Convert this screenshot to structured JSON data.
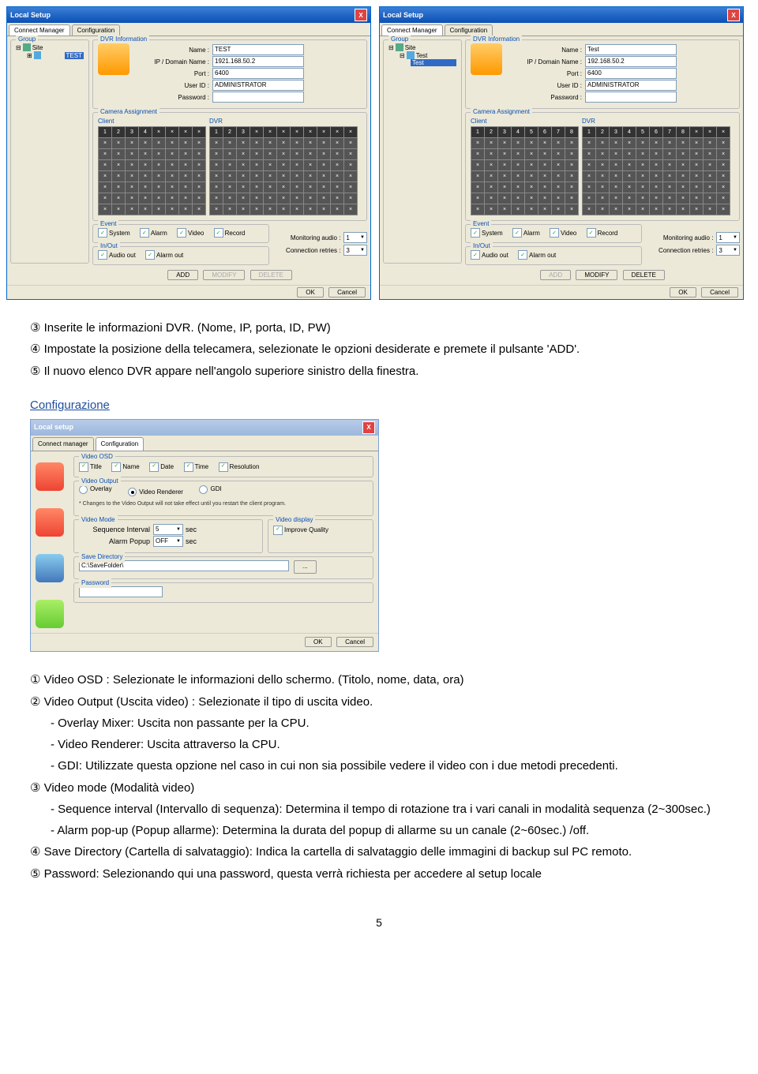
{
  "win_title": "Local Setup",
  "tabs": {
    "cm": "Connect Manager",
    "cfg": "Configuration"
  },
  "group_label": "Group",
  "tree": {
    "site": "Site",
    "test1": "TEST",
    "test2": "Test",
    "test2child": "Test"
  },
  "dvr_info": {
    "label": "DVR Information",
    "name": "Name :",
    "ip": "IP / Domain Name :",
    "port": "Port :",
    "uid": "User ID :",
    "pw": "Password :",
    "v1": {
      "name": "TEST",
      "ip": "1921.168.50.2",
      "port": "6400",
      "uid": "ADMINISTRATOR",
      "pw": ""
    },
    "v2": {
      "name": "Test",
      "ip": "192.168.50.2",
      "port": "6400",
      "uid": "ADMINISTRATOR",
      "pw": ""
    }
  },
  "cam": {
    "label": "Camera Assignment",
    "client": "Client",
    "dvr": "DVR"
  },
  "event": {
    "label": "Event",
    "system": "System",
    "alarm": "Alarm",
    "video": "Video",
    "record": "Record"
  },
  "inout": {
    "label": "In/Out",
    "audio": "Audio out",
    "alarmout": "Alarm out"
  },
  "mon": {
    "audio": "Monitoring audio :",
    "audio_v": "1",
    "retry": "Connection retries :",
    "retry_v": "3"
  },
  "btns": {
    "add": "ADD",
    "modify": "MODIFY",
    "delete": "DELETE",
    "ok": "OK",
    "cancel": "Cancel"
  },
  "doc": {
    "l1": "③ Inserite le informazioni DVR. (Nome, IP, porta, ID, PW)",
    "l2": "④ Impostate la posizione della telecamera, selezionate le opzioni desiderate e premete il pulsante 'ADD'.",
    "l3": "⑤ Il nuovo elenco DVR appare nell'angolo superiore sinistro della finestra.",
    "h": "Configurazione",
    "c1": "① Video OSD : Selezionate le informazioni dello schermo. (Titolo, nome, data, ora)",
    "c2": "② Video Output (Uscita video) : Selezionate il tipo di uscita video.",
    "c2a": "- Overlay Mixer: Uscita non passante per la CPU.",
    "c2b": "- Video Renderer: Uscita attraverso la CPU.",
    "c2c": "- GDI: Utilizzate questa opzione nel caso in cui non sia possibile vedere il video con i due metodi precedenti.",
    "c3": "③ Video mode (Modalità video)",
    "c3a": "- Sequence interval (Intervallo di sequenza): Determina il tempo di rotazione tra i vari canali in modalità sequenza (2~300sec.)",
    "c3b": "- Alarm pop-up (Popup allarme): Determina la durata del popup di allarme su un canale (2~60sec.) /off.",
    "c4": "④ Save Directory (Cartella di salvataggio): Indica la cartella di salvataggio delle immagini di backup sul PC remoto.",
    "c5": "⑤ Password: Selezionando qui una password, questa verrà richiesta per accedere al setup locale",
    "pn": "5"
  },
  "cfg": {
    "title": "Local setup",
    "tabs": {
      "cm": "Connect manager",
      "cfg": "Configuration"
    },
    "osd": {
      "label": "Video OSD",
      "title": "Title",
      "name": "Name",
      "date": "Date",
      "time": "Time",
      "res": "Resolution"
    },
    "out": {
      "label": "Video Output",
      "ov": "Overlay",
      "vr": "Video Renderer",
      "gdi": "GDI",
      "note": "* Changes to the Video Output will not take effect until you restart the client program."
    },
    "mode": {
      "label": "Video Mode",
      "seq": "Sequence Interval",
      "seq_v": "5",
      "sec": "sec",
      "ap": "Alarm Popup",
      "ap_v": "OFF",
      "disp": "Video display",
      "imp": "Improve Quality"
    },
    "save": {
      "label": "Save Directory",
      "path": "C:\\SaveFolder\\",
      "btn": "..."
    },
    "pw": {
      "label": "Password"
    },
    "ok": "OK",
    "cancel": "Cancel"
  }
}
